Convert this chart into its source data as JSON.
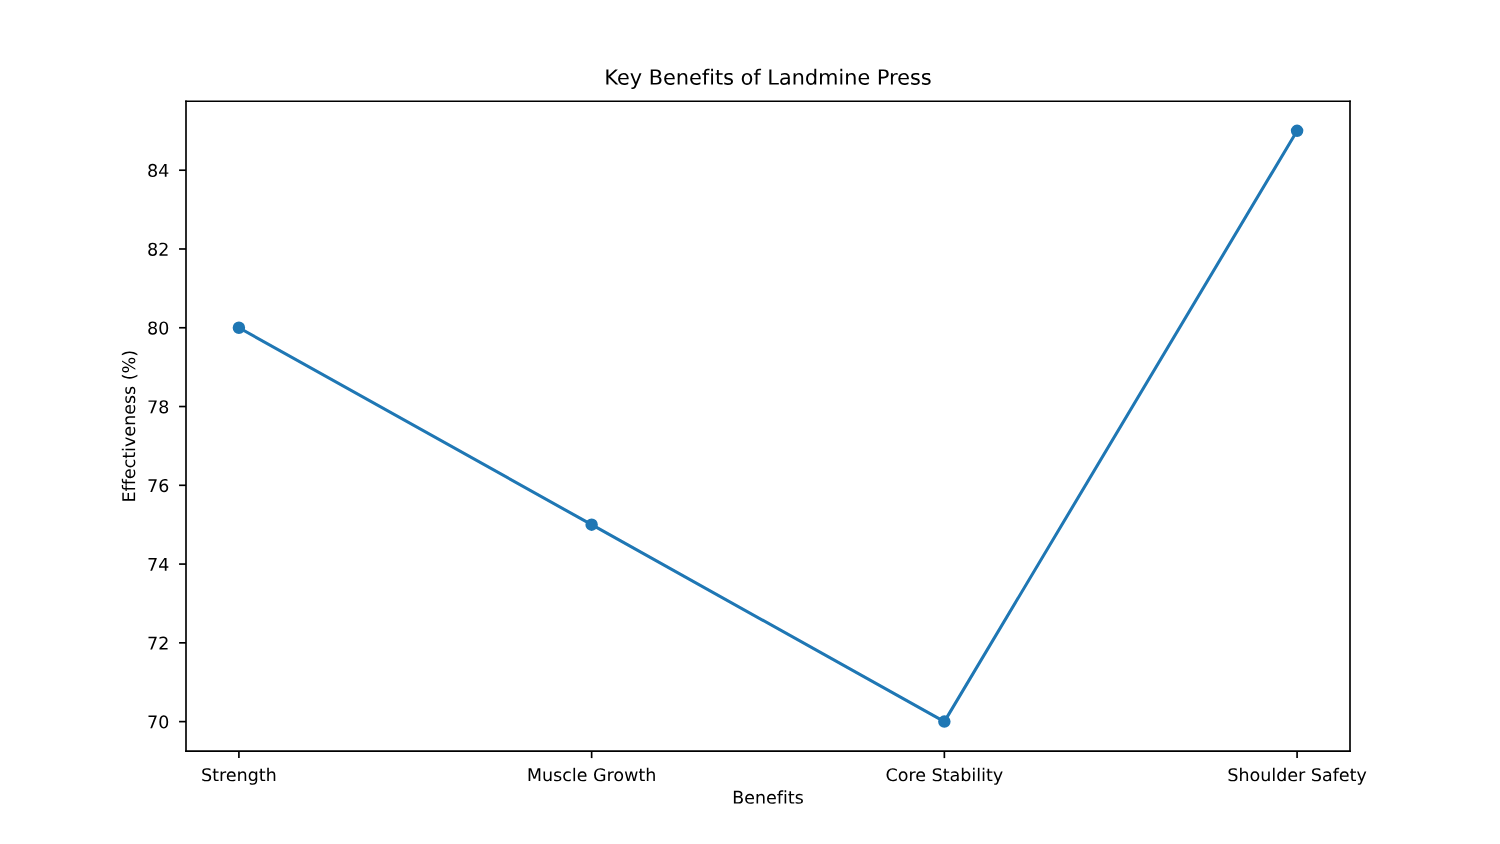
{
  "chart_data": {
    "type": "line",
    "title": "Key Benefits of Landmine Press",
    "xlabel": "Benefits",
    "ylabel": "Effectiveness (%)",
    "categories": [
      "Strength",
      "Muscle Growth",
      "Core Stability",
      "Shoulder Safety"
    ],
    "series": [
      {
        "color": "#1f77b4",
        "values": [
          80,
          75,
          70,
          85
        ]
      }
    ],
    "ylim": [
      69.25,
      85.75
    ],
    "yticks": [
      70,
      72,
      74,
      76,
      78,
      80,
      82,
      84
    ],
    "marker": "circle",
    "line_style": "solid",
    "grid": false,
    "legend": false
  }
}
